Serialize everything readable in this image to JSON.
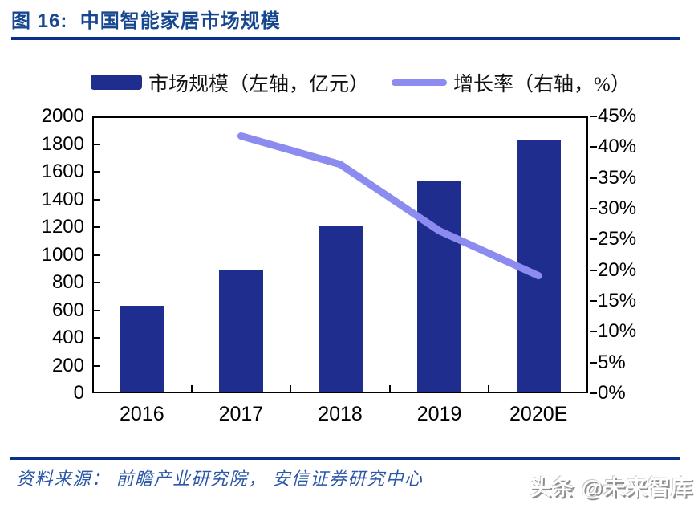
{
  "header": {
    "figure_title": "图 16:  中国智能家居市场规模"
  },
  "legend": [
    {
      "label": "市场规模（左轴，亿元）",
      "swatch": "bar-swatch",
      "color": "#1e2d8e"
    },
    {
      "label": "增长率（右轴，%）",
      "swatch": "line-swatch",
      "color": "#8c8cf0"
    }
  ],
  "chart_data": {
    "type": "bar",
    "subtype": "bar+line combo, dual axis",
    "title": "中国智能家居市场规模",
    "categories": [
      "2016",
      "2017",
      "2018",
      "2019",
      "2020E"
    ],
    "series": [
      {
        "name": "市场规模（左轴，亿元）",
        "type": "bar",
        "axis": "left",
        "color": "#1e2d8e",
        "values": [
          630,
          885,
          1210,
          1530,
          1825
        ]
      },
      {
        "name": "增长率（右轴，%）",
        "type": "line",
        "axis": "right",
        "color": "#8c8cf0",
        "values": [
          null,
          41.8,
          37.2,
          26.4,
          19.1
        ]
      }
    ],
    "left_axis": {
      "min": 0,
      "max": 2000,
      "step": 200,
      "tick_labels": [
        "2000",
        "1800",
        "1600",
        "1400",
        "1200",
        "1000",
        "800",
        "600",
        "400",
        "200",
        "0"
      ]
    },
    "right_axis": {
      "min": 0,
      "max": 45,
      "step": 5,
      "unit": "%",
      "tick_labels": [
        "45%",
        "40%",
        "35%",
        "30%",
        "25%",
        "20%",
        "15%",
        "10%",
        "5%",
        "0%"
      ]
    },
    "grid": false,
    "legend_position": "top"
  },
  "footer": {
    "source": "资料来源： 前瞻产业研究院， 安信证券研究中心",
    "watermark": "头条 @未来智库"
  },
  "colors": {
    "bar": "#1e2d8e",
    "line": "#8c8cf0",
    "title": "#17478f",
    "rule": "#0d2f8c",
    "source_text": "#2b57a8"
  }
}
